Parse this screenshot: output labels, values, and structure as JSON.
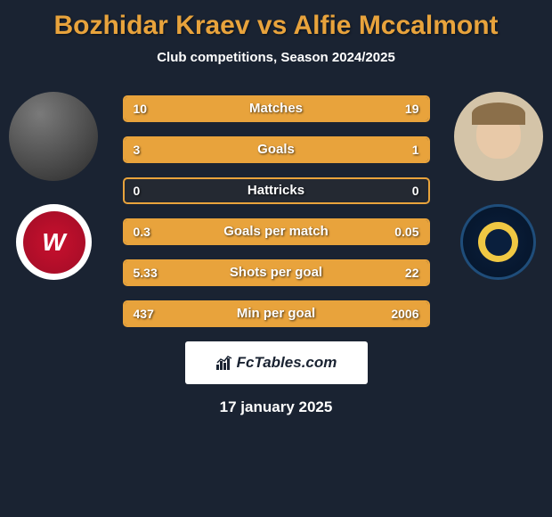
{
  "title": "Bozhidar Kraev vs Alfie Mccalmont",
  "subtitle": "Club competitions, Season 2024/2025",
  "date": "17 january 2025",
  "branding_text": "FcTables.com",
  "colors": {
    "accent": "#e8a33c",
    "background": "#1a2332",
    "text": "#ffffff"
  },
  "player1": {
    "name": "Bozhidar Kraev",
    "club": "Western Sydney Wanderers"
  },
  "player2": {
    "name": "Alfie Mccalmont",
    "club": "Central Coast Mariners"
  },
  "stats": [
    {
      "label": "Matches",
      "left_val": "10",
      "right_val": "19",
      "left_pct": 34,
      "right_pct": 66
    },
    {
      "label": "Goals",
      "left_val": "3",
      "right_val": "1",
      "left_pct": 75,
      "right_pct": 25
    },
    {
      "label": "Hattricks",
      "left_val": "0",
      "right_val": "0",
      "left_pct": 0,
      "right_pct": 0
    },
    {
      "label": "Goals per match",
      "left_val": "0.3",
      "right_val": "0.05",
      "left_pct": 86,
      "right_pct": 14
    },
    {
      "label": "Shots per goal",
      "left_val": "5.33",
      "right_val": "22",
      "left_pct": 20,
      "right_pct": 80
    },
    {
      "label": "Min per goal",
      "left_val": "437",
      "right_val": "2006",
      "left_pct": 18,
      "right_pct": 82
    }
  ]
}
